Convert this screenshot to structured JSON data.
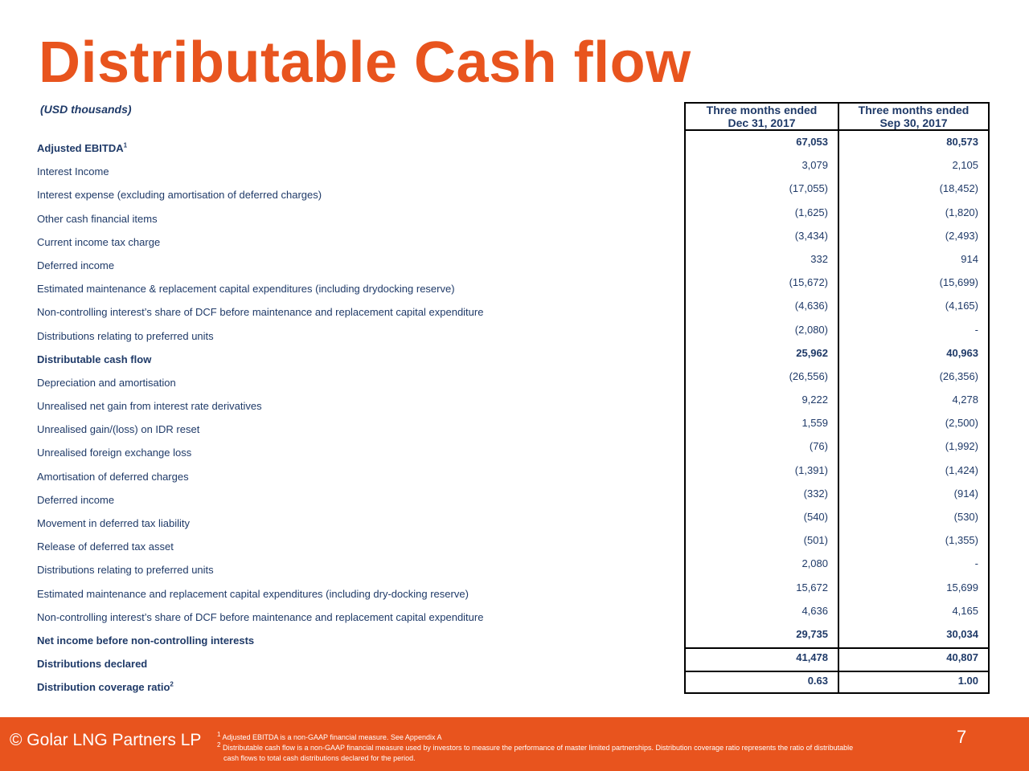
{
  "title": "Distributable Cash flow",
  "units": "(USD thousands)",
  "columns": {
    "col1": {
      "line1": "Three months ended",
      "line2": "Dec 31, 2017"
    },
    "col2": {
      "line1": "Three months ended",
      "line2": "Sep 30, 2017"
    }
  },
  "rows": [
    {
      "label": "Adjusted EBITDA",
      "sup": "1",
      "v1": "67,053",
      "v2": "80,573",
      "bold": true
    },
    {
      "label": "Interest Income",
      "v1": "3,079",
      "v2": "2,105"
    },
    {
      "label": "Interest expense (excluding amortisation of deferred charges)",
      "v1": "(17,055)",
      "v2": "(18,452)"
    },
    {
      "label": "Other cash financial items",
      "v1": "(1,625)",
      "v2": "(1,820)"
    },
    {
      "label": "Current income tax charge",
      "v1": "(3,434)",
      "v2": "(2,493)"
    },
    {
      "label": "Deferred income",
      "v1": "332",
      "v2": "914"
    },
    {
      "label": "Estimated maintenance & replacement capital expenditures (including drydocking reserve)",
      "v1": "(15,672)",
      "v2": "(15,699)"
    },
    {
      "label": "Non-controlling interest’s share of DCF before maintenance and replacement capital expenditure",
      "v1": "(4,636)",
      "v2": "(4,165)"
    },
    {
      "label": "Distributions relating to preferred units",
      "v1": "(2,080)",
      "v2": "-"
    },
    {
      "label": "Distributable cash flow",
      "v1": "25,962",
      "v2": "40,963",
      "bold": true
    },
    {
      "label": "Depreciation and amortisation",
      "v1": "(26,556)",
      "v2": "(26,356)"
    },
    {
      "label": "Unrealised net gain from interest rate derivatives",
      "v1": "9,222",
      "v2": "4,278"
    },
    {
      "label": "Unrealised gain/(loss) on IDR reset",
      "v1": "1,559",
      "v2": "(2,500)"
    },
    {
      "label": "Unrealised foreign exchange loss",
      "v1": "(76)",
      "v2": "(1,992)"
    },
    {
      "label": "Amortisation of deferred charges",
      "v1": "(1,391)",
      "v2": "(1,424)"
    },
    {
      "label": "Deferred income",
      "v1": "(332)",
      "v2": "(914)"
    },
    {
      "label": "Movement in deferred tax liability",
      "v1": "(540)",
      "v2": "(530)"
    },
    {
      "label": "Release of deferred tax asset",
      "v1": "(501)",
      "v2": "(1,355)"
    },
    {
      "label": "Distributions relating to preferred units",
      "v1": "2,080",
      "v2": "-"
    },
    {
      "label": "Estimated maintenance and replacement capital expenditures (including dry-docking reserve)",
      "v1": "15,672",
      "v2": "15,699"
    },
    {
      "label": "Non-controlling interest’s share of DCF before maintenance and replacement capital expenditure",
      "v1": "4,636",
      "v2": "4,165"
    },
    {
      "label": "Net income before non-controlling interests",
      "v1": "29,735",
      "v2": "30,034",
      "bold": true
    },
    {
      "label": "Distributions declared",
      "v1": "41,478",
      "v2": "40,807",
      "bold": true
    },
    {
      "label": "Distribution coverage ratio",
      "sup": "2",
      "v1": "0.63",
      "v2": "1.00",
      "bold": true
    }
  ],
  "footer": {
    "copyright": "© Golar LNG Partners LP",
    "note1_mark": "1",
    "note1": "Adjusted EBITDA is a non-GAAP financial measure.  See Appendix A",
    "note2_mark": "2",
    "note2a": "Distributable cash flow is a non-GAAP financial measure used by investors to measure the performance of master limited partnerships. Distribution coverage ratio represents the ratio of distributable",
    "note2b": "cash flows to total cash distributions declared for the period.",
    "page_number": "7"
  },
  "colors": {
    "title": "#e8541e",
    "text": "#1f3a68",
    "footer_bg": "#e8541e"
  }
}
